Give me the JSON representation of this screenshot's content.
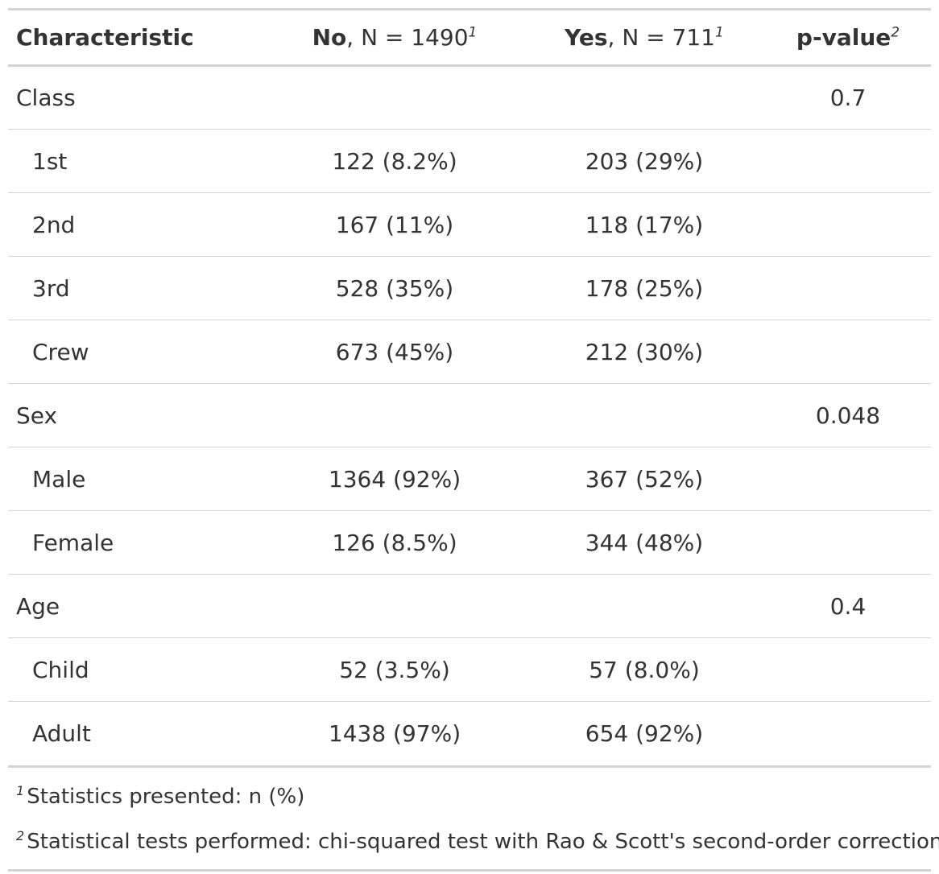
{
  "header": {
    "characteristic": "Characteristic",
    "no_label": "No",
    "no_n": ", N = 1490",
    "no_mark": "1",
    "yes_label": "Yes",
    "yes_n": ", N = 711",
    "yes_mark": "1",
    "pvalue_label": "p-value",
    "pvalue_mark": "2"
  },
  "rows": [
    {
      "label": "Class",
      "no": "",
      "yes": "",
      "p": "0.7"
    },
    {
      "label": "1st",
      "no": "122 (8.2%)",
      "yes": "203 (29%)",
      "p": ""
    },
    {
      "label": "2nd",
      "no": "167 (11%)",
      "yes": "118 (17%)",
      "p": ""
    },
    {
      "label": "3rd",
      "no": "528 (35%)",
      "yes": "178 (25%)",
      "p": ""
    },
    {
      "label": "Crew",
      "no": "673 (45%)",
      "yes": "212 (30%)",
      "p": ""
    },
    {
      "label": "Sex",
      "no": "",
      "yes": "",
      "p": "0.048"
    },
    {
      "label": "Male",
      "no": "1364 (92%)",
      "yes": "367 (52%)",
      "p": ""
    },
    {
      "label": "Female",
      "no": "126 (8.5%)",
      "yes": "344 (48%)",
      "p": ""
    },
    {
      "label": "Age",
      "no": "",
      "yes": "",
      "p": "0.4"
    },
    {
      "label": "Child",
      "no": "52 (3.5%)",
      "yes": "57 (8.0%)",
      "p": ""
    },
    {
      "label": "Adult",
      "no": "1438 (97%)",
      "yes": "654 (92%)",
      "p": ""
    }
  ],
  "footnotes": [
    {
      "mark": "1",
      "text": "Statistics presented: n (%)"
    },
    {
      "mark": "2",
      "text": "Statistical tests performed: chi-squared test with Rao & Scott's second-order correction"
    }
  ]
}
